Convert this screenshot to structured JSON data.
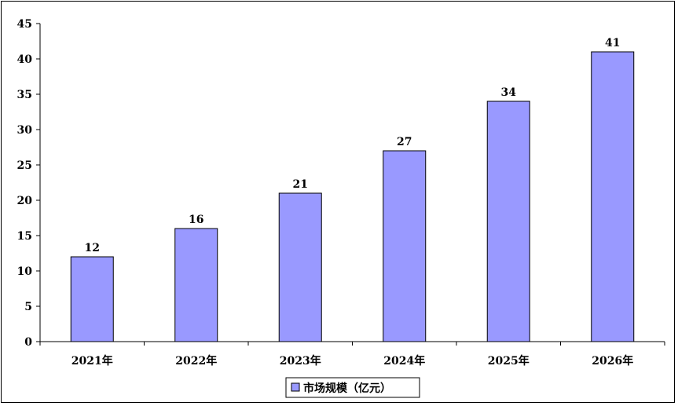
{
  "chart_data": {
    "type": "bar",
    "categories": [
      "2021年",
      "2022年",
      "2023年",
      "2024年",
      "2025年",
      "2026年"
    ],
    "series": [
      {
        "name": "市场规模（亿元）",
        "values": [
          12,
          16,
          21,
          27,
          34,
          41
        ],
        "color": "#9999ff"
      }
    ],
    "data_labels": [
      "12",
      "16",
      "21",
      "27",
      "34",
      "41"
    ],
    "ylim": [
      0,
      45
    ],
    "yticks": [
      0,
      5,
      10,
      15,
      20,
      25,
      30,
      35,
      40,
      45
    ],
    "ytick_labels": [
      "0",
      "5",
      "10",
      "15",
      "20",
      "25",
      "30",
      "35",
      "40",
      "45"
    ],
    "grid": false,
    "legend_position": "bottom-center",
    "title": "",
    "xlabel": "",
    "ylabel": ""
  },
  "legend": {
    "label": "市场规模（亿元）",
    "color": "#9999ff"
  }
}
